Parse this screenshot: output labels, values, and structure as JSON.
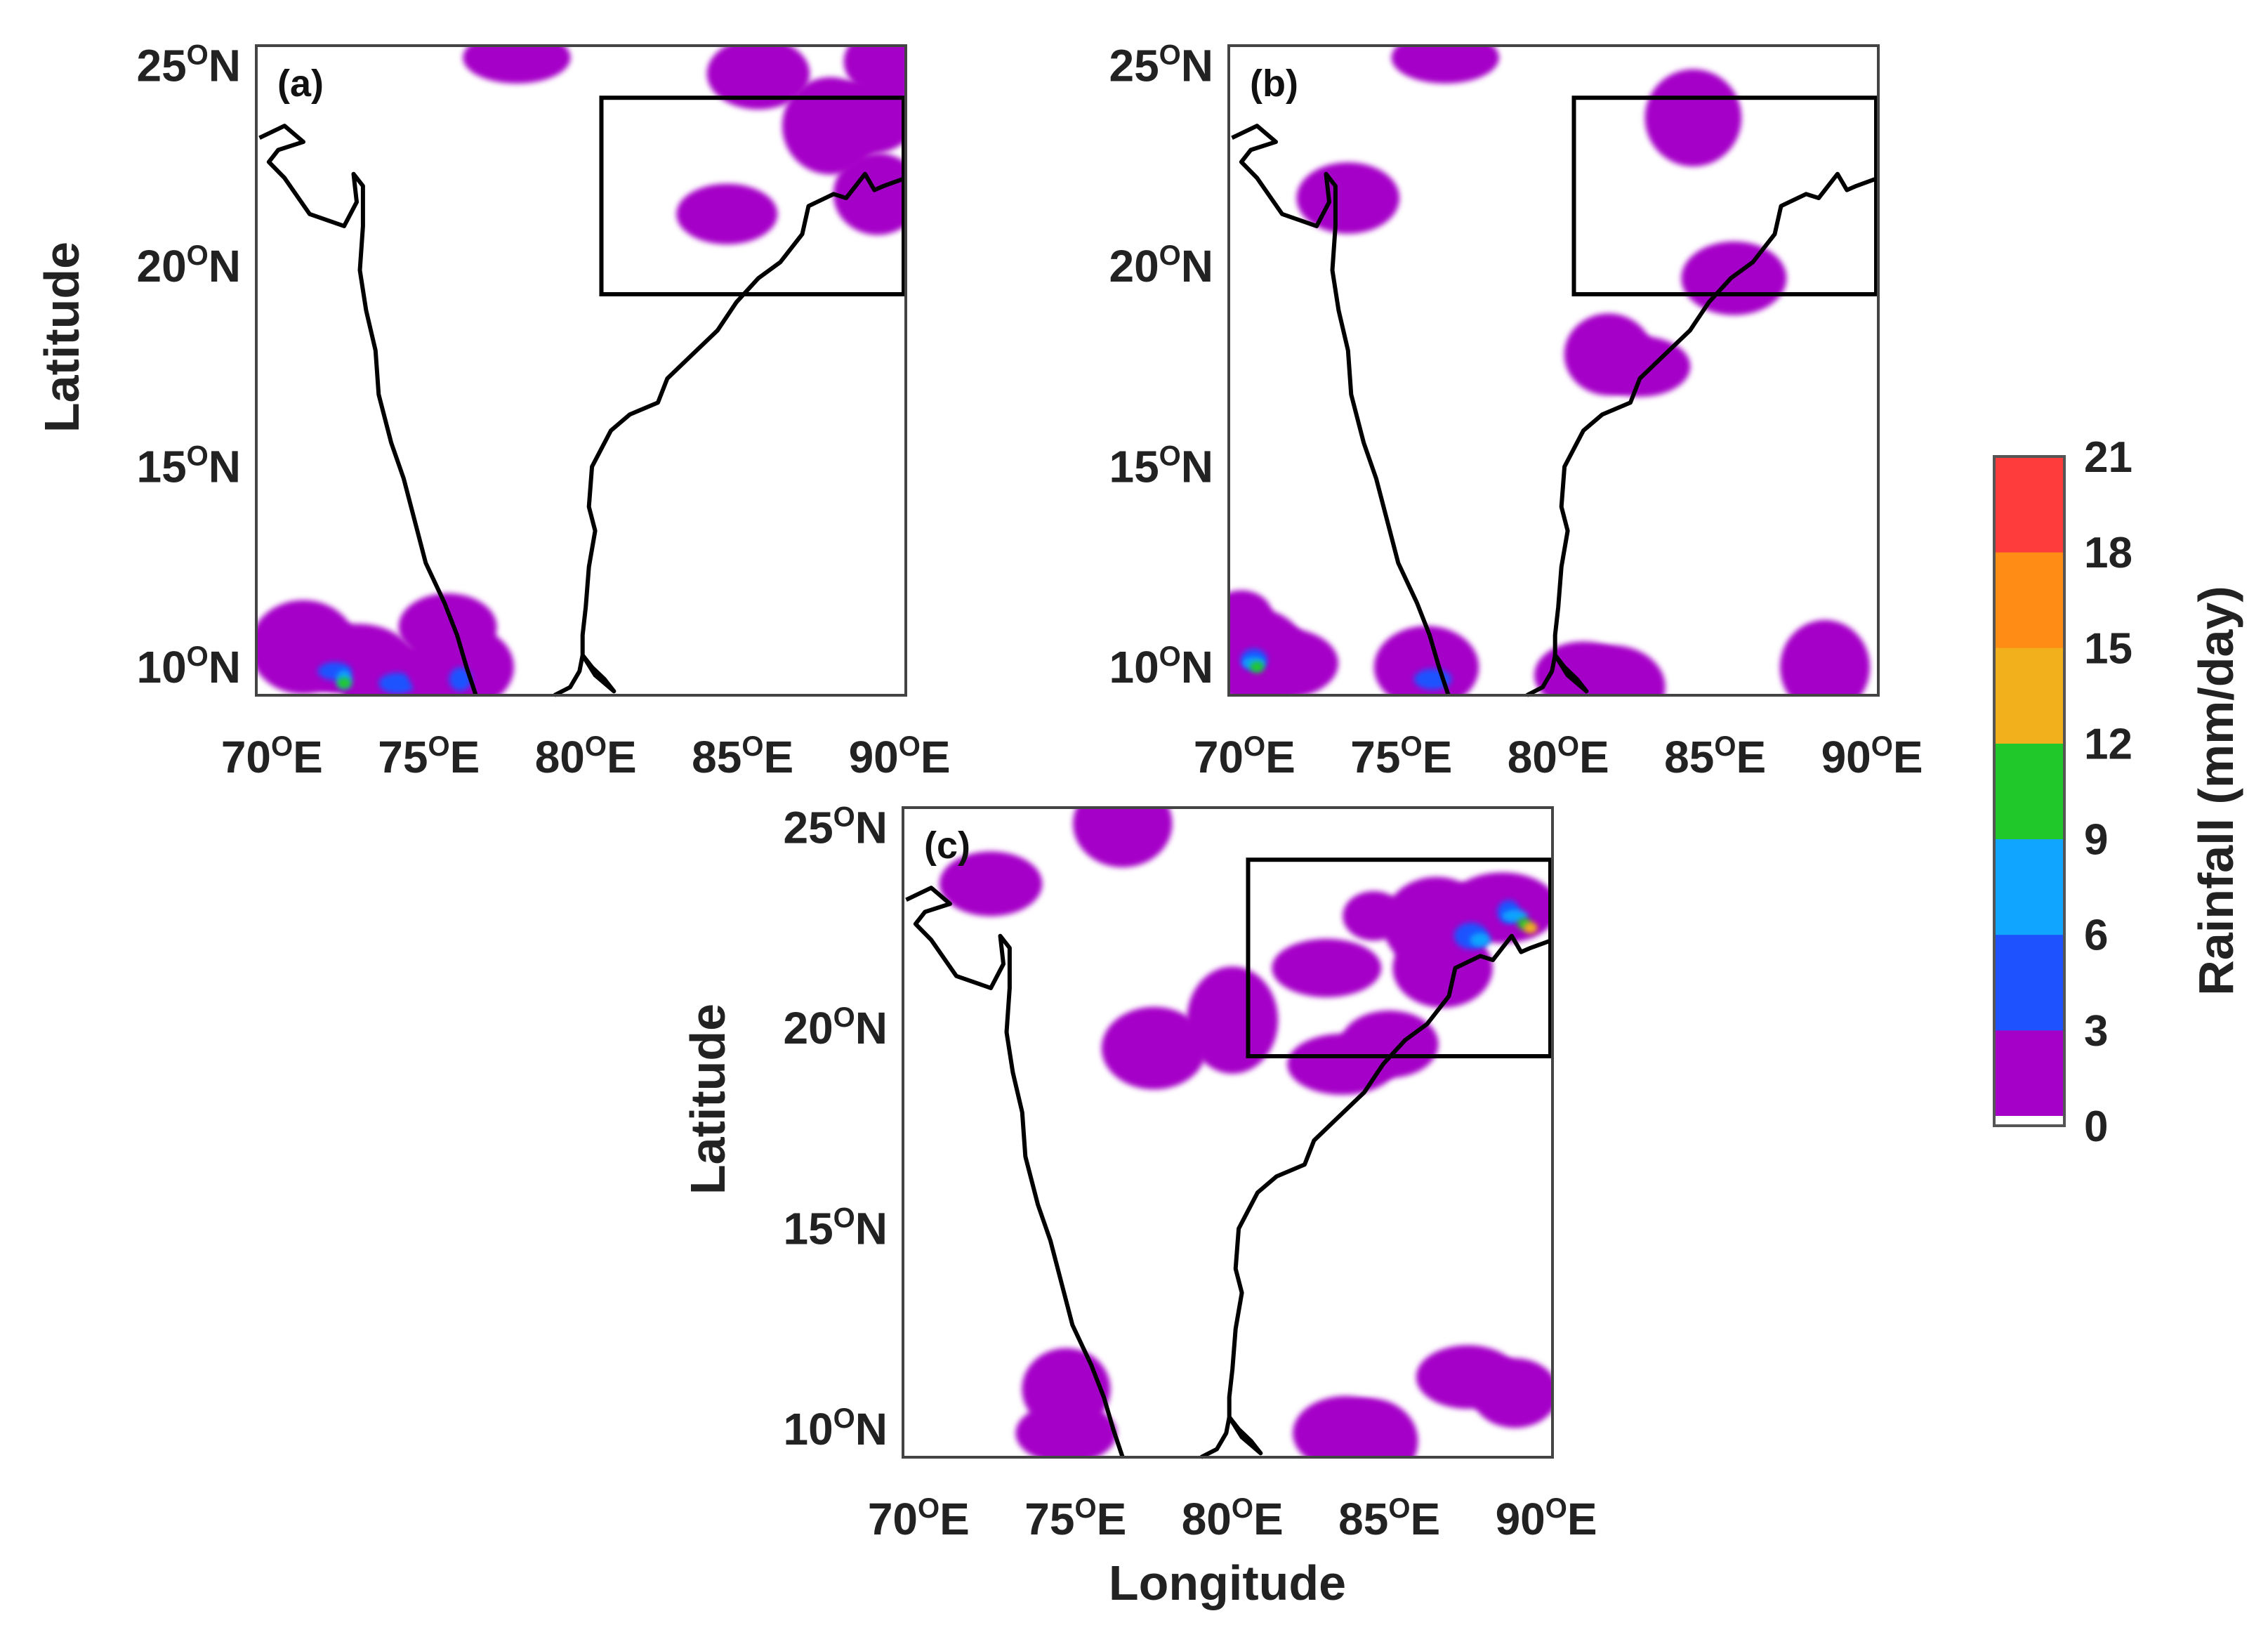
{
  "figure": {
    "axis_labels": {
      "latitude": "Latitude",
      "longitude": "Longitude"
    },
    "lat_ticks": [
      {
        "value": 25,
        "deg": "25",
        "sup": "O",
        "hemi": "N"
      },
      {
        "value": 20,
        "deg": "20",
        "sup": "O",
        "hemi": "N"
      },
      {
        "value": 15,
        "deg": "15",
        "sup": "O",
        "hemi": "N"
      },
      {
        "value": 10,
        "deg": "10",
        "sup": "O",
        "hemi": "N"
      }
    ],
    "lon_ticks": [
      {
        "value": 70,
        "deg": "70",
        "sup": "O",
        "hemi": "E"
      },
      {
        "value": 75,
        "deg": "75",
        "sup": "O",
        "hemi": "E"
      },
      {
        "value": 80,
        "deg": "80",
        "sup": "O",
        "hemi": "E"
      },
      {
        "value": 85,
        "deg": "85",
        "sup": "O",
        "hemi": "E"
      },
      {
        "value": 90,
        "deg": "90",
        "sup": "O",
        "hemi": "E"
      }
    ],
    "lon_range": [
      69.5,
      90.2
    ],
    "lat_range": [
      9.3,
      25.5
    ],
    "study_region": {
      "lon": [
        80.5,
        90.2
      ],
      "lat": [
        19.3,
        24.2
      ]
    },
    "panels": [
      {
        "label": "(a)",
        "rain_cells": [
          {
            "lon": 71.9,
            "lat": 10.0,
            "level": 1
          },
          {
            "lon": 71.0,
            "lat": 10.5,
            "level": 1
          },
          {
            "lon": 72.7,
            "lat": 10.2,
            "level": 1
          },
          {
            "lon": 73.8,
            "lat": 9.6,
            "level": 1
          },
          {
            "lon": 72.0,
            "lat": 9.9,
            "level": 2
          },
          {
            "lon": 72.3,
            "lat": 9.7,
            "level": 3
          },
          {
            "lon": 72.3,
            "lat": 9.6,
            "level": 4
          },
          {
            "lon": 74.0,
            "lat": 9.6,
            "level": 2
          },
          {
            "lon": 75.6,
            "lat": 11.0,
            "level": 1
          },
          {
            "lon": 76.0,
            "lat": 10.0,
            "level": 1
          },
          {
            "lon": 76.0,
            "lat": 9.7,
            "level": 2
          },
          {
            "lon": 85.5,
            "lat": 24.8,
            "level": 1
          },
          {
            "lon": 77.8,
            "lat": 25.2,
            "level": 1
          },
          {
            "lon": 87.8,
            "lat": 23.5,
            "level": 1
          },
          {
            "lon": 88.9,
            "lat": 23.7,
            "level": 1
          },
          {
            "lon": 89.3,
            "lat": 21.8,
            "level": 1
          },
          {
            "lon": 84.5,
            "lat": 21.3,
            "level": 1
          },
          {
            "lon": 89.9,
            "lat": 25.1,
            "level": 1
          }
        ]
      },
      {
        "label": "(b)",
        "rain_cells": [
          {
            "lon": 69.9,
            "lat": 11.3,
            "level": 1
          },
          {
            "lon": 70.3,
            "lat": 10.3,
            "level": 1
          },
          {
            "lon": 71.2,
            "lat": 10.1,
            "level": 1
          },
          {
            "lon": 70.3,
            "lat": 10.2,
            "level": 2
          },
          {
            "lon": 70.3,
            "lat": 10.1,
            "level": 3
          },
          {
            "lon": 70.4,
            "lat": 10.0,
            "level": 4
          },
          {
            "lon": 75.8,
            "lat": 10.0,
            "level": 1
          },
          {
            "lon": 76.0,
            "lat": 9.7,
            "level": 2
          },
          {
            "lon": 80.8,
            "lat": 9.8,
            "level": 1
          },
          {
            "lon": 81.7,
            "lat": 9.5,
            "level": 1
          },
          {
            "lon": 88.5,
            "lat": 10.0,
            "level": 1
          },
          {
            "lon": 73.3,
            "lat": 21.7,
            "level": 1
          },
          {
            "lon": 76.4,
            "lat": 25.2,
            "level": 1
          },
          {
            "lon": 84.3,
            "lat": 23.7,
            "level": 1
          },
          {
            "lon": 85.6,
            "lat": 19.7,
            "level": 1
          },
          {
            "lon": 81.6,
            "lat": 17.8,
            "level": 1
          },
          {
            "lon": 82.6,
            "lat": 17.5,
            "level": 1
          }
        ]
      },
      {
        "label": "(c)",
        "rain_cells": [
          {
            "lon": 84.5,
            "lat": 22.8,
            "level": 1
          },
          {
            "lon": 86.5,
            "lat": 22.6,
            "level": 1
          },
          {
            "lon": 88.6,
            "lat": 23.0,
            "level": 1
          },
          {
            "lon": 86.7,
            "lat": 21.5,
            "level": 1
          },
          {
            "lon": 83.0,
            "lat": 21.5,
            "level": 1
          },
          {
            "lon": 80.0,
            "lat": 20.2,
            "level": 1
          },
          {
            "lon": 77.5,
            "lat": 19.5,
            "level": 1
          },
          {
            "lon": 83.5,
            "lat": 19.1,
            "level": 1
          },
          {
            "lon": 85.0,
            "lat": 19.6,
            "level": 1
          },
          {
            "lon": 87.6,
            "lat": 22.3,
            "level": 2
          },
          {
            "lon": 88.8,
            "lat": 22.9,
            "level": 2
          },
          {
            "lon": 87.9,
            "lat": 22.2,
            "level": 3
          },
          {
            "lon": 89.0,
            "lat": 22.8,
            "level": 3
          },
          {
            "lon": 89.3,
            "lat": 22.6,
            "level": 4
          },
          {
            "lon": 89.5,
            "lat": 22.5,
            "level": 5
          },
          {
            "lon": 74.7,
            "lat": 11.0,
            "level": 1
          },
          {
            "lon": 74.7,
            "lat": 9.9,
            "level": 1
          },
          {
            "lon": 83.6,
            "lat": 9.9,
            "level": 1
          },
          {
            "lon": 84.4,
            "lat": 9.7,
            "level": 1
          },
          {
            "lon": 87.5,
            "lat": 11.3,
            "level": 1
          },
          {
            "lon": 89.0,
            "lat": 10.9,
            "level": 1
          },
          {
            "lon": 76.5,
            "lat": 25.1,
            "level": 1
          },
          {
            "lon": 72.3,
            "lat": 23.6,
            "level": 1
          }
        ]
      }
    ],
    "colorbar": {
      "label": "Rainfall (mm/day)",
      "ticks": [
        "0",
        "3",
        "6",
        "9",
        "12",
        "15",
        "18",
        "21"
      ],
      "colors": [
        "#a500c8",
        "#1e52ff",
        "#10a5ff",
        "#21c82a",
        "#f2b01c",
        "#ff8c14",
        "#ff3c3c"
      ]
    }
  }
}
